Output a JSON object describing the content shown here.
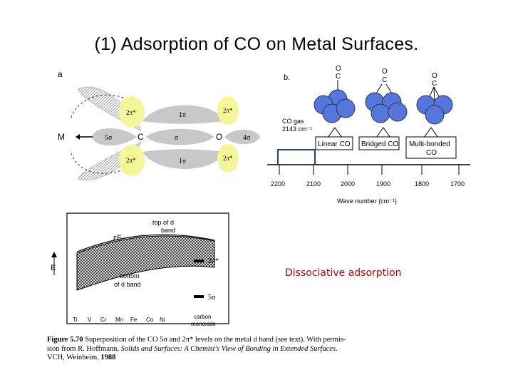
{
  "title": "(1) Adsorption of CO on Metal Surfaces.",
  "panel_a": {
    "label": "a",
    "metal": "M",
    "carbon": "C",
    "oxygen": "O",
    "orb_5sigma": "5σ",
    "orb_4sigma": "4σ",
    "orb_sigma": "σ",
    "orb_1pi_top": "1π",
    "orb_1pi_bottom": "1π",
    "orb_2pi_tl": "2π*",
    "orb_2pi_bl": "2π*",
    "orb_2pi_tr": "2π*",
    "orb_2pi_br": "2π*"
  },
  "panel_b": {
    "label": "b.",
    "o1": "O",
    "c1": "C",
    "o2": "O",
    "c2": "C",
    "o3": "O",
    "c3": "C",
    "co_gas_1": "CO gas",
    "co_gas_2": "2143 cm⁻¹",
    "linear": "Linear CO",
    "bridged": "Bridged CO",
    "multi_1": "Multi-bonded",
    "multi_2": "CO",
    "ticks": [
      "2200",
      "2100",
      "2000",
      "1900",
      "1800",
      "1700"
    ],
    "axis_label": "Wave number (cm⁻¹)"
  },
  "panel_c": {
    "top_band_1": "top of d",
    "top_band_2": "band",
    "ef": "εF",
    "bottom_band_1": "bottom",
    "bottom_band_2": "of d band",
    "e_axis": "E",
    "pi_level": "2π*",
    "sigma_level": "5σ",
    "metals": [
      "Ti",
      "V",
      "Cr",
      "Mn",
      "Fe",
      "Co",
      "Ni"
    ],
    "co_1": "carbon",
    "co_2": "monoxide"
  },
  "dissociative": "Dissociative adsorption",
  "caption": {
    "fig": "Figure 5.70",
    "text1": "Superposition of the CO 5σ and 2π* levels on the metal d band (see text). With permis-",
    "text2": "sion from R. Hoffmann,",
    "italic": "Solids and Surfaces: A Chemist's View of Bonding in Extended Surfaces.",
    "text3": "VCH, Weinheim,",
    "year": "1988"
  }
}
